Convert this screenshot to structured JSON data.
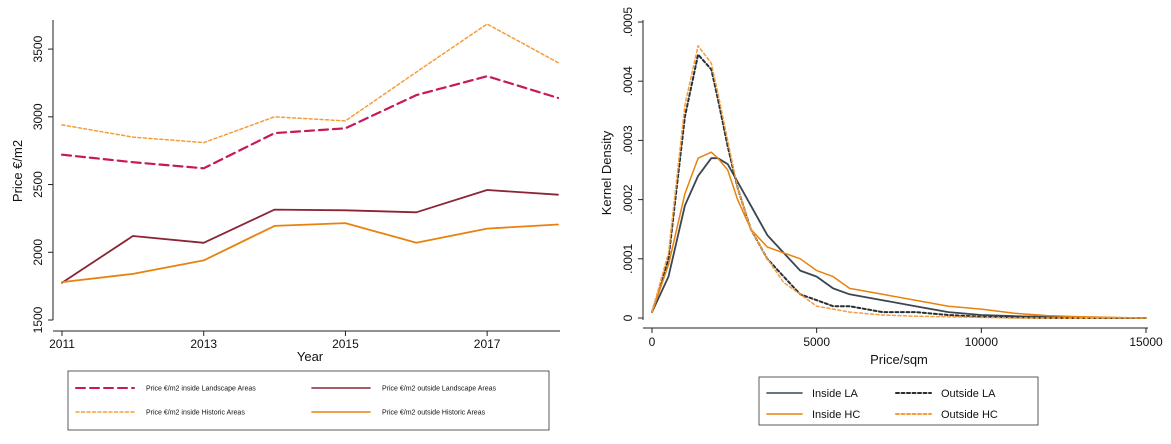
{
  "chart_data": [
    {
      "type": "line",
      "title": "",
      "xlabel": "Year",
      "ylabel": "Price €/m2",
      "x": [
        2011,
        2012,
        2013,
        2014,
        2015,
        2016,
        2017,
        2018
      ],
      "xticks": [
        "2011",
        "2013",
        "2015",
        "2017"
      ],
      "yticks": [
        "1500",
        "2000",
        "2500",
        "3000",
        "3500"
      ],
      "xlim": [
        2011,
        2018
      ],
      "ylim": [
        1500,
        3700
      ],
      "grid": false,
      "legend_position": "bottom",
      "series": [
        {
          "name": "Price €/m2 inside Landscape Areas",
          "color": "#c8175a",
          "style": "dashed",
          "values": [
            2720,
            2665,
            2620,
            2880,
            2915,
            3160,
            3300,
            3140
          ]
        },
        {
          "name": "Price €/m2 outside Landscape Areas",
          "color": "#8b2535",
          "style": "solid",
          "values": [
            1775,
            2120,
            2070,
            2315,
            2310,
            2295,
            2460,
            2425
          ]
        },
        {
          "name": "Price €/m2 inside Historic Areas",
          "color": "#f59d3a",
          "style": "dotted",
          "values": [
            2940,
            2850,
            2810,
            3000,
            2970,
            3330,
            3685,
            3400
          ]
        },
        {
          "name": "Price €/m2 outside Historic Areas",
          "color": "#e8820e",
          "style": "solid",
          "values": [
            1780,
            1840,
            1940,
            2195,
            2215,
            2070,
            2175,
            2205
          ]
        }
      ]
    },
    {
      "type": "line",
      "title": "",
      "xlabel": "Price/sqm",
      "ylabel": "Kernel Density",
      "x": [
        0,
        500,
        1000,
        1400,
        1800,
        2000,
        2300,
        2600,
        3000,
        3500,
        4000,
        4500,
        5000,
        5500,
        6000,
        7000,
        8000,
        9000,
        10000,
        11000,
        12000,
        13000,
        14000,
        15000
      ],
      "xticks": [
        "0",
        "5000",
        "10000",
        "15000"
      ],
      "yticks": [
        "0",
        ".0001",
        ".0002",
        ".0003",
        ".0004",
        ".0005"
      ],
      "xlim": [
        0,
        15000
      ],
      "ylim": [
        0,
        0.0005
      ],
      "grid": false,
      "legend_position": "bottom",
      "series": [
        {
          "name": "Inside LA",
          "color": "#3a4652",
          "style": "solid",
          "values": [
            1e-05,
            7e-05,
            0.00019,
            0.00024,
            0.00027,
            0.00027,
            0.00026,
            0.00023,
            0.00019,
            0.00014,
            0.00011,
            8e-05,
            7e-05,
            5e-05,
            4e-05,
            3e-05,
            2e-05,
            1e-05,
            5e-06,
            3e-06,
            2e-06,
            1e-06,
            0,
            0
          ]
        },
        {
          "name": "Outside LA",
          "color": "#2a2f36",
          "style": "dotted",
          "values": [
            1e-05,
            0.0001,
            0.00034,
            0.000445,
            0.00042,
            0.00037,
            0.00029,
            0.00022,
            0.00015,
            0.0001,
            7e-05,
            4e-05,
            3e-05,
            2e-05,
            2e-05,
            1e-05,
            1e-05,
            5e-06,
            2e-06,
            1e-06,
            0,
            0,
            0,
            0
          ]
        },
        {
          "name": "Inside HC",
          "color": "#e8820e",
          "style": "solid",
          "values": [
            1e-05,
            9e-05,
            0.00021,
            0.00027,
            0.00028,
            0.00027,
            0.00025,
            0.0002,
            0.00015,
            0.00012,
            0.00011,
            0.0001,
            8e-05,
            7e-05,
            5e-05,
            4e-05,
            3e-05,
            2e-05,
            1.5e-05,
            8e-06,
            4e-06,
            2e-06,
            1e-06,
            0
          ]
        },
        {
          "name": "Outside HC",
          "color": "#f59d3a",
          "style": "dotted",
          "values": [
            1e-05,
            0.00011,
            0.00036,
            0.00046,
            0.00043,
            0.00038,
            0.0003,
            0.00022,
            0.00015,
            0.0001,
            6e-05,
            4e-05,
            2e-05,
            1.5e-05,
            1e-05,
            5e-06,
            3e-06,
            2e-06,
            1e-06,
            0,
            0,
            0,
            0,
            0
          ]
        }
      ]
    }
  ]
}
